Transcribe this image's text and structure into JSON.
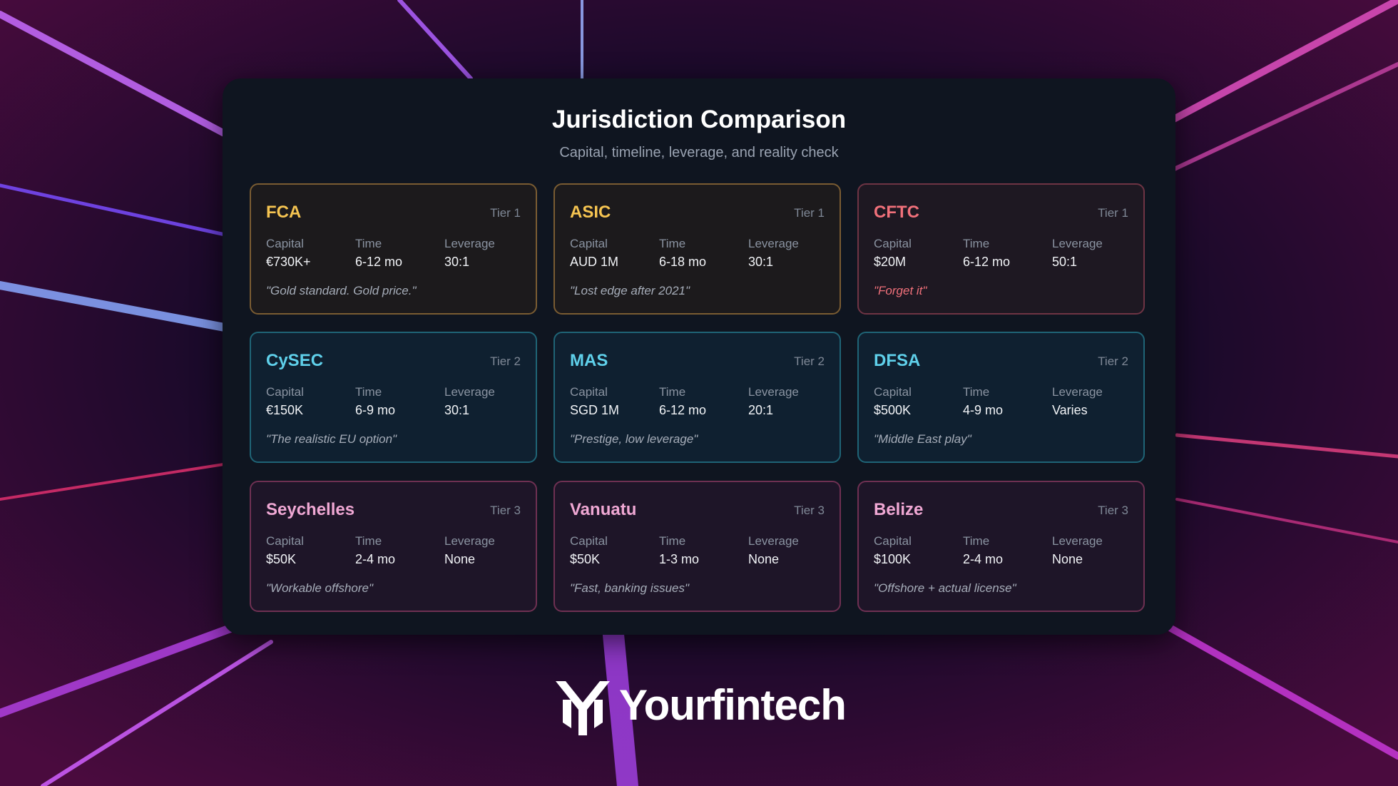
{
  "header": {
    "title": "Jurisdiction Comparison",
    "subtitle": "Capital, timeline, leverage, and reality check"
  },
  "cards": [
    {
      "name": "FCA",
      "tier": "Tier 1",
      "color": "#f5c451",
      "border": "#7a5c32",
      "bg": "#1c1a1c",
      "fields": [
        {
          "label": "Capital",
          "value": "€730K+"
        },
        {
          "label": "Time",
          "value": "6-12 mo"
        },
        {
          "label": "Leverage",
          "value": "30:1"
        }
      ],
      "quote": "\"Gold standard. Gold price.\""
    },
    {
      "name": "ASIC",
      "tier": "Tier 1",
      "color": "#f5c451",
      "border": "#7a5c32",
      "bg": "#1c1a1c",
      "fields": [
        {
          "label": "Capital",
          "value": "AUD 1M"
        },
        {
          "label": "Time",
          "value": "6-18 mo"
        },
        {
          "label": "Leverage",
          "value": "30:1"
        }
      ],
      "quote": "\"Lost edge after 2021\""
    },
    {
      "name": "CFTC",
      "tier": "Tier 1",
      "color": "#f0707a",
      "border": "#6e3444",
      "bg": "#1e1822",
      "quote_color": "#f0707a",
      "fields": [
        {
          "label": "Capital",
          "value": "$20M"
        },
        {
          "label": "Time",
          "value": "6-12 mo"
        },
        {
          "label": "Leverage",
          "value": "50:1"
        }
      ],
      "quote": "\"Forget it\""
    },
    {
      "name": "CySEC",
      "tier": "Tier 2",
      "color": "#5fd0ea",
      "border": "#1f6476",
      "bg": "#0f2030",
      "fields": [
        {
          "label": "Capital",
          "value": "€150K"
        },
        {
          "label": "Time",
          "value": "6-9 mo"
        },
        {
          "label": "Leverage",
          "value": "30:1"
        }
      ],
      "quote": "\"The realistic EU option\""
    },
    {
      "name": "MAS",
      "tier": "Tier 2",
      "color": "#5fd0ea",
      "border": "#1f6476",
      "bg": "#0f2030",
      "fields": [
        {
          "label": "Capital",
          "value": "SGD 1M"
        },
        {
          "label": "Time",
          "value": "6-12 mo"
        },
        {
          "label": "Leverage",
          "value": "20:1"
        }
      ],
      "quote": "\"Prestige, low leverage\""
    },
    {
      "name": "DFSA",
      "tier": "Tier 2",
      "color": "#5fd0ea",
      "border": "#1f6476",
      "bg": "#0f2030",
      "fields": [
        {
          "label": "Capital",
          "value": "$500K"
        },
        {
          "label": "Time",
          "value": "4-9 mo"
        },
        {
          "label": "Leverage",
          "value": "Varies"
        }
      ],
      "quote": "\"Middle East play\""
    },
    {
      "name": "Seychelles",
      "tier": "Tier 3",
      "color": "#f0a8d4",
      "border": "#6e3052",
      "bg": "#1e1528",
      "fields": [
        {
          "label": "Capital",
          "value": "$50K"
        },
        {
          "label": "Time",
          "value": "2-4 mo"
        },
        {
          "label": "Leverage",
          "value": "None"
        }
      ],
      "quote": "\"Workable offshore\""
    },
    {
      "name": "Vanuatu",
      "tier": "Tier 3",
      "color": "#f0a8d4",
      "border": "#6e3052",
      "bg": "#1e1528",
      "fields": [
        {
          "label": "Capital",
          "value": "$50K"
        },
        {
          "label": "Time",
          "value": "1-3 mo"
        },
        {
          "label": "Leverage",
          "value": "None"
        }
      ],
      "quote": "\"Fast, banking issues\""
    },
    {
      "name": "Belize",
      "tier": "Tier 3",
      "color": "#f0a8d4",
      "border": "#6e3052",
      "bg": "#1e1528",
      "fields": [
        {
          "label": "Capital",
          "value": "$100K"
        },
        {
          "label": "Time",
          "value": "2-4 mo"
        },
        {
          "label": "Leverage",
          "value": "None"
        }
      ],
      "quote": "\"Offshore + actual license\""
    }
  ],
  "brand": {
    "name": "Yourfintech"
  }
}
